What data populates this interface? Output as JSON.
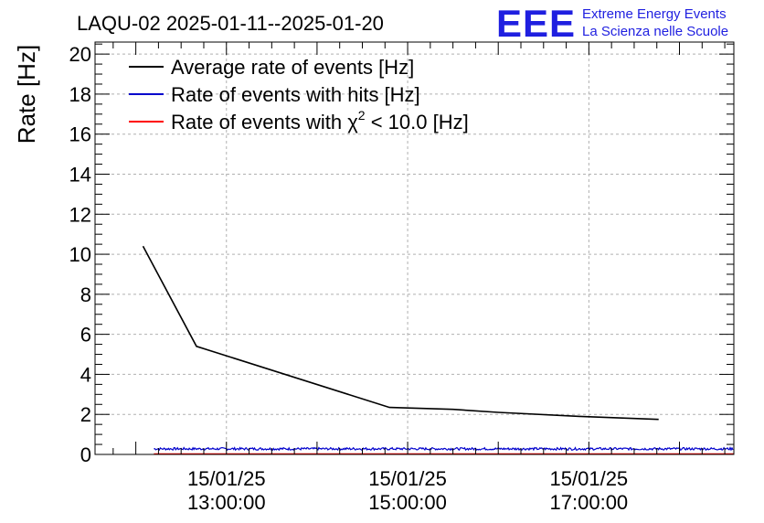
{
  "chart_data": {
    "type": "line",
    "title": "LAQU-02 2025-01-11--2025-01-20",
    "ylabel": "Rate [Hz]",
    "xlabel": "",
    "ylim": [
      0,
      20.6
    ],
    "xlim_hours": [
      11.55,
      18.6
    ],
    "yticks": [
      0,
      2,
      4,
      6,
      8,
      10,
      12,
      14,
      16,
      18,
      20
    ],
    "xticks": [
      {
        "hour": 13,
        "date": "15/01/25",
        "time": "13:00:00"
      },
      {
        "hour": 15,
        "date": "15/01/25",
        "time": "15:00:00"
      },
      {
        "hour": 17,
        "date": "15/01/25",
        "time": "17:00:00"
      }
    ],
    "grid": true,
    "legend_position": "top-left",
    "series": [
      {
        "name": "Average rate of events [Hz]",
        "color": "#000000",
        "points": [
          [
            12.08,
            10.4
          ],
          [
            12.67,
            5.4
          ],
          [
            14.8,
            2.35
          ],
          [
            15.5,
            2.25
          ],
          [
            16.0,
            2.1
          ],
          [
            16.9,
            1.9
          ],
          [
            17.77,
            1.75
          ]
        ]
      },
      {
        "name": "Rate of events with hits [Hz]",
        "color": "#0000cc",
        "noisy": true,
        "x_range": [
          12.2,
          18.6
        ],
        "mean": 0.28,
        "spread": 0.06,
        "points": [
          [
            12.2,
            0.25
          ],
          [
            13.0,
            0.3
          ],
          [
            14.0,
            0.28
          ],
          [
            15.0,
            0.3
          ],
          [
            16.0,
            0.27
          ],
          [
            17.0,
            0.3
          ],
          [
            18.0,
            0.32
          ],
          [
            18.6,
            0.3
          ]
        ]
      },
      {
        "name": "Rate of events with χ² < 10.0 [Hz]",
        "legend_prefix": "Rate of events with ",
        "legend_chi": "χ",
        "legend_sup": "2",
        "legend_suffix": " < 10.0 [Hz]",
        "color": "#ff0000",
        "points": [
          [
            12.2,
            0.02
          ],
          [
            18.6,
            0.02
          ]
        ]
      }
    ]
  },
  "logo": {
    "mark": "EEE",
    "line1": "Extreme Energy Events",
    "line2": "La Scienza nelle Scuole",
    "color": "#1f1fe0"
  }
}
